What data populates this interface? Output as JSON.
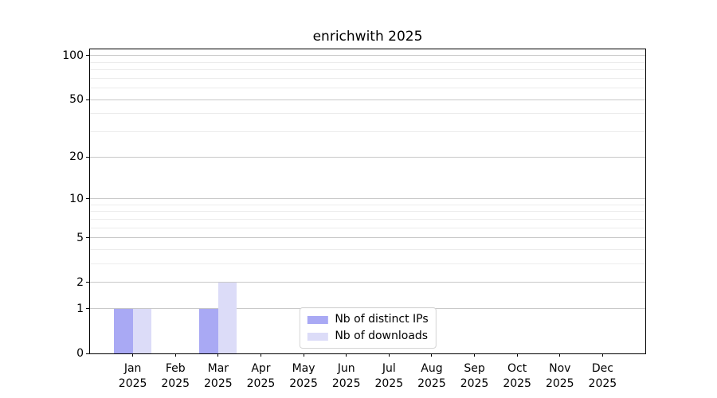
{
  "chart_data": {
    "type": "bar",
    "title": "enrichwith 2025",
    "categories": [
      "Jan",
      "Feb",
      "Mar",
      "Apr",
      "May",
      "Jun",
      "Jul",
      "Aug",
      "Sep",
      "Oct",
      "Nov",
      "Dec"
    ],
    "category_year": "2025",
    "series": [
      {
        "name": "Nb of distinct IPs",
        "color": "#a9a9f4",
        "values": [
          1,
          0,
          1,
          0,
          0,
          0,
          0,
          0,
          0,
          0,
          0,
          0
        ]
      },
      {
        "name": "Nb of downloads",
        "color": "#dcdcf8",
        "values": [
          1,
          0,
          2,
          0,
          0,
          0,
          0,
          0,
          0,
          0,
          0,
          0
        ]
      }
    ],
    "yscale": "log1p",
    "ylim": [
      0,
      110
    ],
    "yticks_major": [
      0,
      1,
      2,
      5,
      10,
      20,
      50,
      100
    ],
    "yticks_minor": [
      3,
      4,
      6,
      7,
      8,
      9,
      30,
      40,
      60,
      70,
      80,
      90
    ],
    "grid": "horizontal",
    "legend_position": "lower center",
    "colors": {
      "major_grid": "#c8c8c8",
      "minor_grid": "#ececec",
      "axis": "#000000",
      "text": "#000000",
      "background": "#ffffff"
    }
  }
}
